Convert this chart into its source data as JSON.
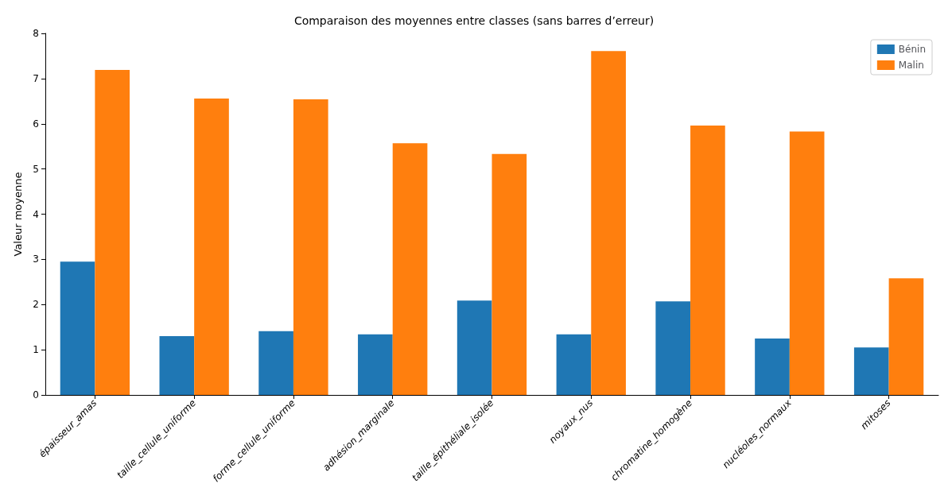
{
  "chart_data": {
    "type": "bar",
    "title": "Comparaison des moyennes entre classes (sans barres d’erreur)",
    "ylabel": "Valeur moyenne",
    "categories": [
      "épaisseur_amas",
      "taille_cellule_uniforme",
      "forme_cellule_uniforme",
      "adhésion_marginale",
      "taille_épithéliale_isolée",
      "noyaux_nus",
      "chromatine_homogène",
      "nucléoles_normaux",
      "mitoses"
    ],
    "series": [
      {
        "name": "Bénin",
        "color": "#1f77b4",
        "values": [
          2.95,
          1.3,
          1.41,
          1.34,
          2.09,
          1.34,
          2.07,
          1.25,
          1.05
        ]
      },
      {
        "name": "Malin",
        "color": "#ff7f0e",
        "values": [
          7.19,
          6.56,
          6.54,
          5.57,
          5.33,
          7.61,
          5.96,
          5.83,
          2.58
        ]
      }
    ],
    "ylim": [
      0,
      8
    ],
    "yticks": [
      0,
      1,
      2,
      3,
      4,
      5,
      6,
      7,
      8
    ],
    "grid": false,
    "legend": "top right"
  }
}
